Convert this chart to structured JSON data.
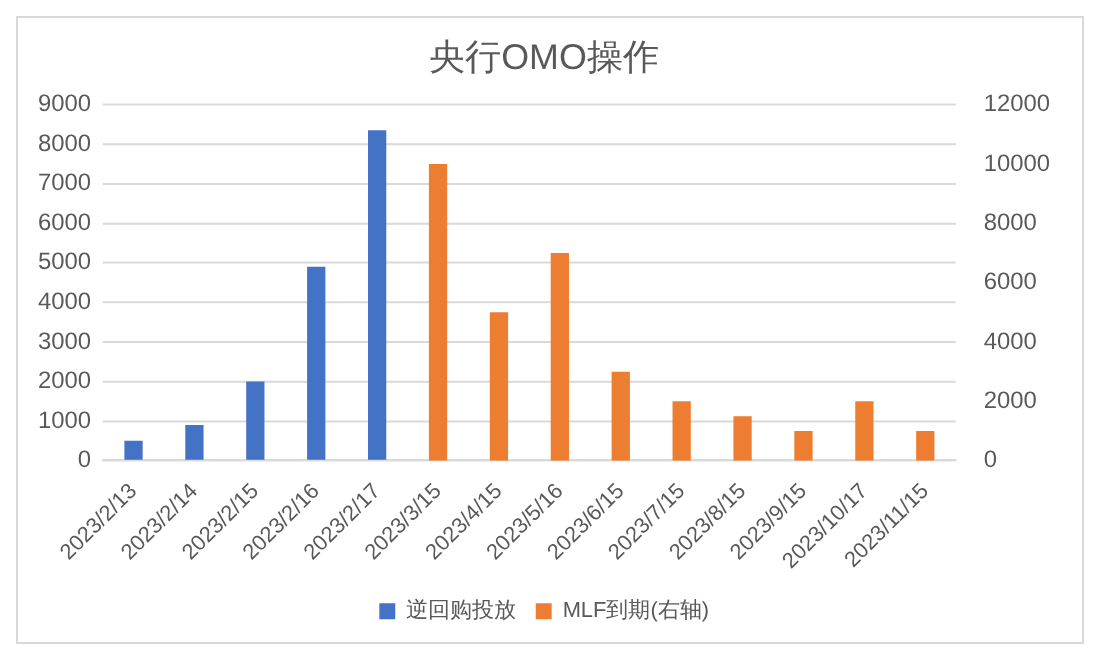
{
  "chart_data": {
    "type": "bar",
    "title": "央行OMO操作",
    "categories": [
      "2023/2/13",
      "2023/2/14",
      "2023/2/15",
      "2023/2/16",
      "2023/2/17",
      "2023/3/15",
      "2023/4/15",
      "2023/5/16",
      "2023/6/15",
      "2023/7/15",
      "2023/8/15",
      "2023/9/15",
      "2023/10/17",
      "2023/11/15"
    ],
    "series": [
      {
        "name": "逆回购投放",
        "color": "#4472c4",
        "values": [
          500,
          900,
          2000,
          4900,
          8350,
          null,
          null,
          null,
          null,
          null,
          null,
          null,
          null,
          null
        ]
      },
      {
        "name": "MLF到期(右轴)",
        "color": "#ed7d31",
        "axis": "y2",
        "values": [
          null,
          null,
          null,
          null,
          null,
          10000,
          5000,
          7000,
          3000,
          2000,
          1500,
          1000,
          2000,
          1000
        ]
      }
    ],
    "ylim": [
      0,
      9000
    ],
    "yticks": [
      0,
      1000,
      2000,
      3000,
      4000,
      5000,
      6000,
      7000,
      8000,
      9000
    ],
    "y2lim": [
      0,
      12000
    ],
    "y2ticks": [
      0,
      2000,
      4000,
      6000,
      8000,
      10000,
      12000
    ],
    "grid": "y",
    "legend": "bottom"
  }
}
